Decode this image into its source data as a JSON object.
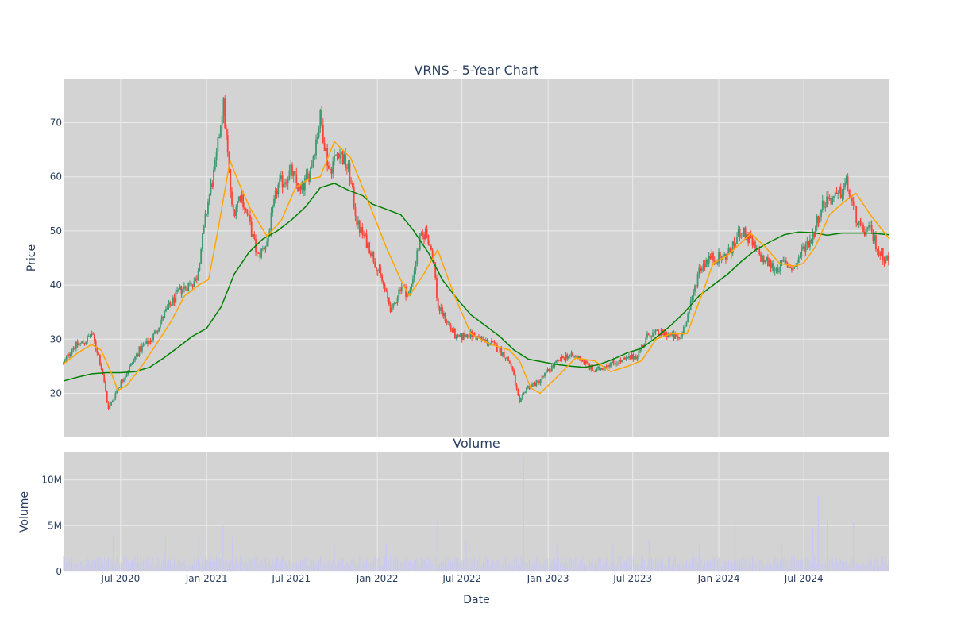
{
  "chart_data": {
    "type": "candlestick",
    "title": "VRNS - 5-Year Chart",
    "volume_title": "Volume",
    "xlabel": "Date",
    "ylabel": "Price",
    "volume_ylabel": "Volume",
    "x_range": [
      "2020-03-01",
      "2024-12-31"
    ],
    "price_ylim": [
      12,
      78
    ],
    "volume_ylim": [
      0,
      13000000
    ],
    "grid": true,
    "colors": {
      "plot_bg": "#d3d3d3",
      "grid": "#ebebeb",
      "increasing": "#3d9970",
      "decreasing": "#ff4136",
      "ma_short": "#ffa500",
      "ma_long": "#008000",
      "volume": "#c8c8f0",
      "text": "#2a3f5f"
    },
    "x_ticks": [
      {
        "date": "2020-07-01",
        "label": "Jul 2020"
      },
      {
        "date": "2021-01-01",
        "label": "Jan 2021"
      },
      {
        "date": "2021-07-01",
        "label": "Jul 2021"
      },
      {
        "date": "2022-01-01",
        "label": "Jan 2022"
      },
      {
        "date": "2022-07-01",
        "label": "Jul 2022"
      },
      {
        "date": "2023-01-01",
        "label": "Jan 2023"
      },
      {
        "date": "2023-07-01",
        "label": "Jul 2023"
      },
      {
        "date": "2024-01-01",
        "label": "Jan 2024"
      },
      {
        "date": "2024-07-01",
        "label": "Jul 2024"
      }
    ],
    "price_ticks": [
      {
        "value": 20,
        "label": "20"
      },
      {
        "value": 30,
        "label": "30"
      },
      {
        "value": 40,
        "label": "40"
      },
      {
        "value": 50,
        "label": "50"
      },
      {
        "value": 60,
        "label": "60"
      },
      {
        "value": 70,
        "label": "70"
      }
    ],
    "volume_ticks": [
      {
        "value": 0,
        "label": "0"
      },
      {
        "value": 5000000,
        "label": "5M"
      },
      {
        "value": 10000000,
        "label": "10M"
      }
    ],
    "price_path": [
      [
        "2020-03-02",
        25.5
      ],
      [
        "2020-03-20",
        28.5
      ],
      [
        "2020-04-15",
        29.5
      ],
      [
        "2020-04-30",
        31
      ],
      [
        "2020-05-15",
        27
      ],
      [
        "2020-05-25",
        23
      ],
      [
        "2020-06-05",
        17
      ],
      [
        "2020-06-25",
        21
      ],
      [
        "2020-07-15",
        24
      ],
      [
        "2020-08-10",
        28
      ],
      [
        "2020-09-05",
        30
      ],
      [
        "2020-10-05",
        35
      ],
      [
        "2020-11-05",
        39
      ],
      [
        "2020-12-10",
        41
      ],
      [
        "2021-01-05",
        56
      ],
      [
        "2021-01-20",
        62
      ],
      [
        "2021-02-05",
        74
      ],
      [
        "2021-02-15",
        64
      ],
      [
        "2021-02-25",
        53
      ],
      [
        "2021-03-15",
        57
      ],
      [
        "2021-04-01",
        52
      ],
      [
        "2021-04-20",
        45
      ],
      [
        "2021-05-10",
        48
      ],
      [
        "2021-06-01",
        58
      ],
      [
        "2021-07-01",
        61
      ],
      [
        "2021-07-20",
        57
      ],
      [
        "2021-08-10",
        61
      ],
      [
        "2021-09-01",
        71
      ],
      [
        "2021-09-20",
        61
      ],
      [
        "2021-10-10",
        65
      ],
      [
        "2021-11-01",
        61
      ],
      [
        "2021-11-20",
        51
      ],
      [
        "2021-12-15",
        47
      ],
      [
        "2022-01-10",
        41
      ],
      [
        "2022-02-01",
        35
      ],
      [
        "2022-02-20",
        40
      ],
      [
        "2022-03-10",
        38
      ],
      [
        "2022-04-01",
        48
      ],
      [
        "2022-04-15",
        50
      ],
      [
        "2022-05-01",
        45
      ],
      [
        "2022-05-10",
        36
      ],
      [
        "2022-06-01",
        33
      ],
      [
        "2022-06-20",
        30
      ],
      [
        "2022-07-15",
        31
      ],
      [
        "2022-08-10",
        30
      ],
      [
        "2022-09-05",
        29
      ],
      [
        "2022-10-01",
        27
      ],
      [
        "2022-10-15",
        25
      ],
      [
        "2022-11-01",
        18
      ],
      [
        "2022-11-15",
        21
      ],
      [
        "2022-12-10",
        22
      ],
      [
        "2023-01-10",
        25
      ],
      [
        "2023-02-10",
        27
      ],
      [
        "2023-03-10",
        26.5
      ],
      [
        "2023-04-10",
        24
      ],
      [
        "2023-05-10",
        25.5
      ],
      [
        "2023-06-10",
        26
      ],
      [
        "2023-07-10",
        27
      ],
      [
        "2023-08-05",
        31
      ],
      [
        "2023-09-10",
        31
      ],
      [
        "2023-10-10",
        30
      ],
      [
        "2023-11-01",
        36
      ],
      [
        "2023-11-20",
        43
      ],
      [
        "2023-12-10",
        45
      ],
      [
        "2024-01-10",
        45
      ],
      [
        "2024-02-01",
        47
      ],
      [
        "2024-02-15",
        50
      ],
      [
        "2024-03-01",
        49
      ],
      [
        "2024-04-01",
        45
      ],
      [
        "2024-05-01",
        43
      ],
      [
        "2024-05-20",
        44
      ],
      [
        "2024-06-10",
        43
      ],
      [
        "2024-07-01",
        47
      ],
      [
        "2024-07-20",
        49
      ],
      [
        "2024-08-05",
        54
      ],
      [
        "2024-08-20",
        56
      ],
      [
        "2024-09-10",
        56
      ],
      [
        "2024-10-01",
        59
      ],
      [
        "2024-10-15",
        54
      ],
      [
        "2024-11-01",
        50
      ],
      [
        "2024-11-20",
        50
      ],
      [
        "2024-12-10",
        46
      ],
      [
        "2024-12-31",
        44.5
      ]
    ],
    "ma50": [
      [
        "2020-03-02",
        25.5
      ],
      [
        "2020-04-01",
        27.5
      ],
      [
        "2020-04-30",
        29
      ],
      [
        "2020-05-20",
        28
      ],
      [
        "2020-06-10",
        24
      ],
      [
        "2020-06-25",
        20.5
      ],
      [
        "2020-07-15",
        21.5
      ],
      [
        "2020-08-15",
        25
      ],
      [
        "2020-09-15",
        29
      ],
      [
        "2020-10-15",
        33
      ],
      [
        "2020-11-15",
        38
      ],
      [
        "2020-12-15",
        40
      ],
      [
        "2021-01-05",
        41
      ],
      [
        "2021-01-25",
        50
      ],
      [
        "2021-02-20",
        63
      ],
      [
        "2021-03-15",
        58
      ],
      [
        "2021-04-05",
        54
      ],
      [
        "2021-05-10",
        49
      ],
      [
        "2021-06-10",
        52
      ],
      [
        "2021-07-10",
        58
      ],
      [
        "2021-08-05",
        59.5
      ],
      [
        "2021-09-01",
        60
      ],
      [
        "2021-10-01",
        66.5
      ],
      [
        "2021-11-05",
        63.5
      ],
      [
        "2021-12-10",
        56
      ],
      [
        "2022-01-20",
        47
      ],
      [
        "2022-02-20",
        41
      ],
      [
        "2022-03-10",
        38
      ],
      [
        "2022-04-10",
        42
      ],
      [
        "2022-05-10",
        46.5
      ],
      [
        "2022-06-15",
        38
      ],
      [
        "2022-07-20",
        31
      ],
      [
        "2022-09-01",
        29
      ],
      [
        "2022-10-10",
        28
      ],
      [
        "2022-11-01",
        26
      ],
      [
        "2022-11-25",
        21
      ],
      [
        "2022-12-15",
        20
      ],
      [
        "2023-01-20",
        23
      ],
      [
        "2023-03-01",
        26.5
      ],
      [
        "2023-04-10",
        26
      ],
      [
        "2023-05-15",
        24
      ],
      [
        "2023-06-20",
        25
      ],
      [
        "2023-07-20",
        26
      ],
      [
        "2023-08-20",
        30
      ],
      [
        "2023-09-20",
        31
      ],
      [
        "2023-10-25",
        31
      ],
      [
        "2023-11-25",
        38
      ],
      [
        "2023-12-20",
        44
      ],
      [
        "2024-01-20",
        45.5
      ],
      [
        "2024-02-20",
        48
      ],
      [
        "2024-03-10",
        49.5
      ],
      [
        "2024-04-10",
        47
      ],
      [
        "2024-05-10",
        44
      ],
      [
        "2024-06-10",
        43.5
      ],
      [
        "2024-06-30",
        44
      ],
      [
        "2024-07-25",
        47
      ],
      [
        "2024-08-25",
        53
      ],
      [
        "2024-09-20",
        55
      ],
      [
        "2024-10-20",
        57
      ],
      [
        "2024-11-20",
        53
      ],
      [
        "2024-12-31",
        48.5
      ]
    ],
    "ma200": [
      [
        "2020-03-02",
        22.3
      ],
      [
        "2020-04-01",
        23
      ],
      [
        "2020-05-01",
        23.6
      ],
      [
        "2020-06-01",
        23.8
      ],
      [
        "2020-07-01",
        23.8
      ],
      [
        "2020-08-01",
        24
      ],
      [
        "2020-09-01",
        24.8
      ],
      [
        "2020-10-01",
        26.5
      ],
      [
        "2020-11-01",
        28.5
      ],
      [
        "2020-12-01",
        30.5
      ],
      [
        "2021-01-01",
        32
      ],
      [
        "2021-02-01",
        36
      ],
      [
        "2021-03-01",
        42
      ],
      [
        "2021-04-01",
        46
      ],
      [
        "2021-05-01",
        48.5
      ],
      [
        "2021-06-01",
        50
      ],
      [
        "2021-07-01",
        52
      ],
      [
        "2021-08-01",
        54.5
      ],
      [
        "2021-09-01",
        58
      ],
      [
        "2021-10-01",
        58.8
      ],
      [
        "2021-11-01",
        57.5
      ],
      [
        "2021-12-01",
        56.5
      ],
      [
        "2021-12-20",
        55
      ],
      [
        "2022-01-20",
        54
      ],
      [
        "2022-02-20",
        53
      ],
      [
        "2022-03-20",
        50
      ],
      [
        "2022-04-20",
        46
      ],
      [
        "2022-05-20",
        41
      ],
      [
        "2022-06-20",
        37.5
      ],
      [
        "2022-07-20",
        34.5
      ],
      [
        "2022-08-20",
        32.5
      ],
      [
        "2022-09-20",
        30.5
      ],
      [
        "2022-10-20",
        28
      ],
      [
        "2022-11-20",
        26.3
      ],
      [
        "2022-12-20",
        25.8
      ],
      [
        "2023-01-20",
        25.3
      ],
      [
        "2023-02-20",
        25
      ],
      [
        "2023-03-20",
        24.8
      ],
      [
        "2023-04-20",
        25.3
      ],
      [
        "2023-05-20",
        26.3
      ],
      [
        "2023-06-20",
        27.5
      ],
      [
        "2023-07-20",
        28.3
      ],
      [
        "2023-08-20",
        30.3
      ],
      [
        "2023-09-20",
        32.5
      ],
      [
        "2023-10-20",
        35
      ],
      [
        "2023-11-20",
        38
      ],
      [
        "2023-12-20",
        40
      ],
      [
        "2024-01-20",
        42
      ],
      [
        "2024-02-20",
        44.5
      ],
      [
        "2024-03-20",
        46.5
      ],
      [
        "2024-04-20",
        48
      ],
      [
        "2024-05-20",
        49.3
      ],
      [
        "2024-06-20",
        49.8
      ],
      [
        "2024-07-20",
        49.7
      ],
      [
        "2024-08-20",
        49.2
      ],
      [
        "2024-09-20",
        49.6
      ],
      [
        "2024-10-20",
        49.6
      ],
      [
        "2024-11-20",
        49.6
      ],
      [
        "2024-12-31",
        49.3
      ]
    ],
    "volume_spikes": [
      [
        "2020-06-15",
        4000000
      ],
      [
        "2020-10-05",
        3800000
      ],
      [
        "2020-12-15",
        4000000
      ],
      [
        "2021-02-05",
        5000000
      ],
      [
        "2021-02-25",
        3700000
      ],
      [
        "2021-10-01",
        3000000
      ],
      [
        "2022-01-20",
        3100000
      ],
      [
        "2022-05-10",
        6000000
      ],
      [
        "2022-07-10",
        3200000
      ],
      [
        "2022-11-10",
        12500000
      ],
      [
        "2023-01-20",
        3100000
      ],
      [
        "2023-05-20",
        3000000
      ],
      [
        "2023-08-05",
        3300000
      ],
      [
        "2023-11-20",
        3000000
      ],
      [
        "2024-02-05",
        5200000
      ],
      [
        "2024-05-15",
        3000000
      ],
      [
        "2024-07-20",
        4700000
      ],
      [
        "2024-08-01",
        8400000
      ],
      [
        "2024-08-20",
        5600000
      ],
      [
        "2024-10-15",
        5400000
      ]
    ]
  }
}
